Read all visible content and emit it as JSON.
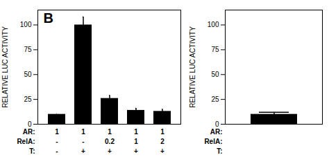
{
  "chart_data": [
    {
      "type": "bar",
      "title": "B",
      "ylabel": "RELATIVE LUC ACTIVITY",
      "categories": [
        null,
        null,
        null,
        null,
        null
      ],
      "values": [
        10,
        100,
        26,
        14,
        13
      ],
      "errors": [
        0,
        8,
        3,
        2,
        2
      ],
      "color": "#000000",
      "ylim": [
        0,
        115
      ],
      "yticks": [
        0,
        25,
        50,
        75,
        100
      ],
      "grid": false,
      "tick_labels": "y",
      "label_rows": [
        {
          "name": "AR:",
          "labels": [
            "1",
            "1",
            "1",
            "1",
            "1"
          ]
        },
        {
          "name": "RelA:",
          "labels": [
            "-",
            "-",
            "0.2",
            "1",
            "2"
          ]
        },
        {
          "name": "T:",
          "labels": [
            "-",
            "+",
            "+",
            "+",
            "+"
          ]
        }
      ]
    },
    {
      "type": "bar",
      "ylabel": "RELATIVE LUC ACTIVITY",
      "categories": [
        null
      ],
      "values": [
        10
      ],
      "errors": [
        2
      ],
      "color": "#000000",
      "ylim": [
        0,
        115
      ],
      "yticks": [
        0,
        25,
        50,
        75,
        100
      ],
      "grid": false,
      "tick_labels": "y",
      "label_rows": [
        {
          "name": "AR:",
          "labels": []
        },
        {
          "name": "RelA:",
          "labels": []
        },
        {
          "name": "T:",
          "labels": []
        }
      ]
    }
  ]
}
